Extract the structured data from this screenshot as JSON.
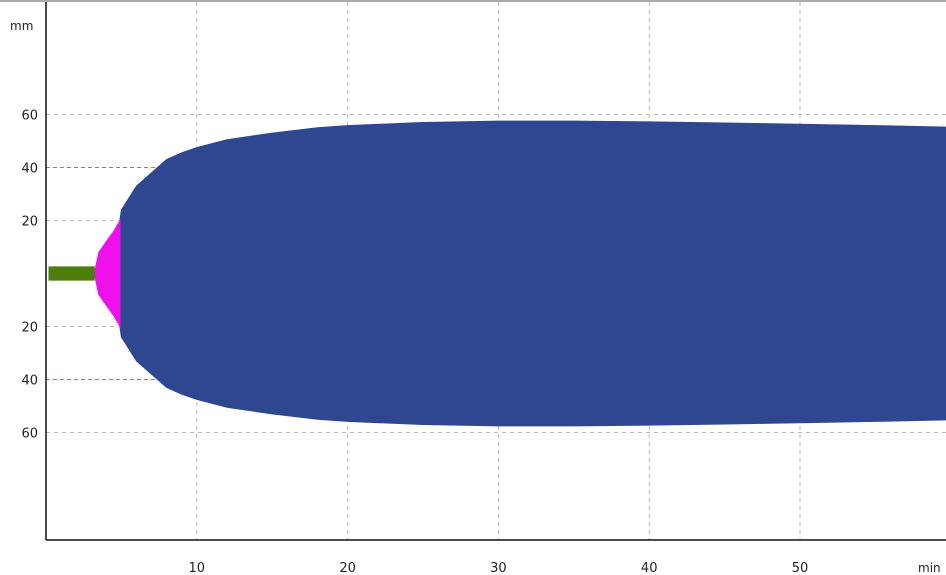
{
  "chart_data": {
    "type": "area",
    "xlabel": "min",
    "ylabel": "mm",
    "xlim": [
      0,
      60
    ],
    "ylim": [
      -60,
      60
    ],
    "x_ticks": [
      10,
      20,
      30,
      40,
      50
    ],
    "y_ticks_upper": [
      60,
      40,
      20
    ],
    "y_ticks_lower": [
      20,
      40,
      60
    ],
    "y_tick_label_upper": {
      "60": "60",
      "40": "40",
      "20": "20"
    },
    "y_tick_label_lower": {
      "20": "20",
      "40": "40",
      "60": "60"
    },
    "grid": true,
    "reference_lines": [
      {
        "y": 40,
        "color": "#3cb64a"
      },
      {
        "y": -40,
        "color": "#3cb64a"
      }
    ],
    "series": [
      {
        "color": "#2f4791",
        "x": [
          4.9,
          5,
          6,
          7,
          8,
          9,
          10,
          12,
          15,
          18,
          20,
          25,
          30,
          35,
          40,
          45,
          50,
          55,
          60
        ],
        "half_width": [
          20,
          24,
          33,
          38,
          43,
          45.5,
          47.5,
          50.5,
          53,
          55,
          55.8,
          57,
          57.5,
          57.5,
          57.2,
          56.8,
          56.3,
          55.8,
          55.2
        ]
      },
      {
        "color": "#ee11ee",
        "x": [
          3.2,
          3.5,
          4.0,
          4.5,
          4.9
        ],
        "half_width": [
          0,
          8,
          12,
          16,
          20
        ]
      },
      {
        "color": "#4e7f0c",
        "x": [
          0.2,
          3.2
        ],
        "half_width": [
          2.5,
          2.5
        ]
      }
    ]
  }
}
